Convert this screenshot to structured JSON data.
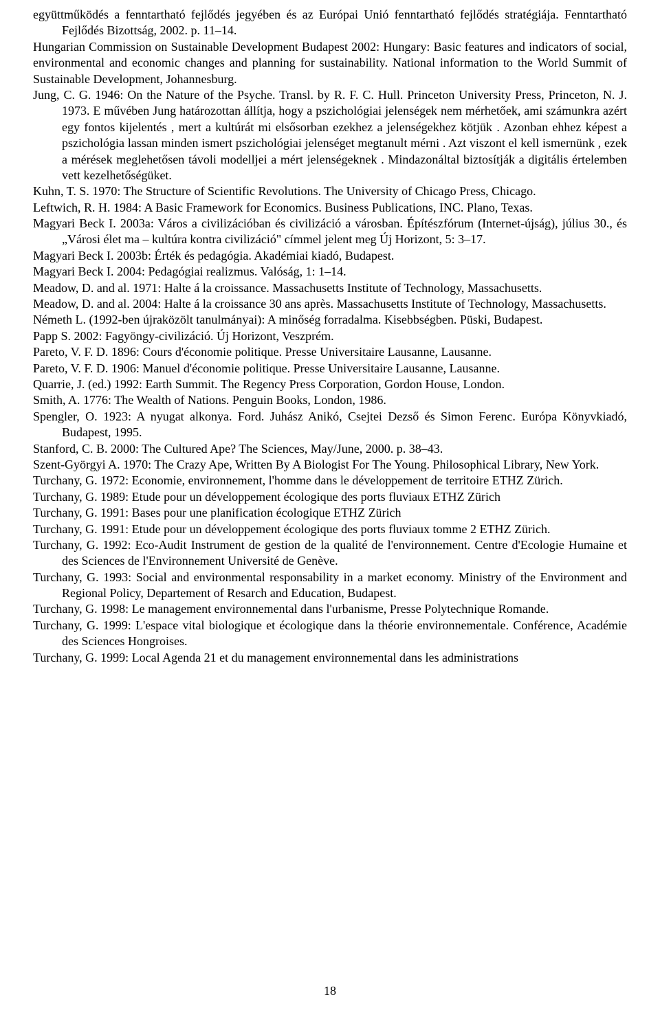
{
  "page_number": "18",
  "entries": [
    {
      "indent": true,
      "justify": true,
      "text": "együttműködés a fenntartható fejlődés jegyében és az Európai Unió fenntartható fejlődés stratégiája. Fenntartható Fejlődés Bizottság, 2002. p. 11–14."
    },
    {
      "indent": false,
      "justify": true,
      "text": "Hungarian Commission on Sustainable Development Budapest 2002: Hungary: Basic features and indicators of social, environmental and economic changes and planning for sustainability. National information to the World Summit of Sustainable Development, Johannesburg."
    },
    {
      "indent": true,
      "justify": true,
      "text": "Jung, C. G. 1946: On the Nature of the Psyche. Transl. by R. F. C. Hull. Princeton University Press, Princeton, N. J. 1973. E művében Jung határozottan állítja, hogy a pszichológiai jelenségek nem mérhetőek, ami számunkra azért egy fontos kijelentés , mert a kultúrát mi elsősorban ezekhez a jelenségekhez kötjük . Azonban ehhez képest a pszichológia lassan minden ismert pszichológiai jelenséget megtanult mérni . Azt viszont el kell ismernünk , ezek a mérések meglehetősen távoli modelljei a mért jelenségeknek . Mindazonáltal biztosítják a digitális értelemben vett kezelhetőségüket."
    },
    {
      "indent": true,
      "justify": true,
      "text": "Kuhn, T. S. 1970: The Structure of Scientific Revolutions. The University of Chicago Press, Chicago."
    },
    {
      "indent": true,
      "justify": true,
      "text": "Leftwich, R. H. 1984: A Basic Framework for Economics. Business Publications, INC. Plano, Texas."
    },
    {
      "indent": true,
      "justify": true,
      "text": "Magyari Beck I. 2003a: Város a civilizációban és civilizáció a városban. Építészfórum (Internet-újság), július 30., és „Városi élet ma – kultúra kontra civilizáció\" címmel jelent meg Új Horizont, 5: 3–17."
    },
    {
      "indent": false,
      "justify": false,
      "text": "Magyari Beck I. 2003b: Érték és pedagógia. Akadémiai kiadó, Budapest."
    },
    {
      "indent": false,
      "justify": false,
      "text": "Magyari Beck I. 2004: Pedagógiai realizmus. Valóság, 1: 1–14."
    },
    {
      "indent": true,
      "justify": true,
      "text": "Meadow, D. and al. 1971: Halte á la croissance. Massachusetts Institute of Technology, Massachusetts."
    },
    {
      "indent": true,
      "justify": true,
      "text": "Meadow, D. and al. 2004: Halte á la croissance 30 ans après. Massachusetts Institute of Technology, Massachusetts."
    },
    {
      "indent": true,
      "justify": true,
      "text": "Németh L. (1992-ben újraközölt tanulmányai): A minőség forradalma. Kisebbségben. Püski, Budapest."
    },
    {
      "indent": false,
      "justify": false,
      "text": "Papp S. 2002: Fagyöngy-civilizáció. Új Horizont, Veszprém."
    },
    {
      "indent": false,
      "justify": false,
      "text": "Pareto, V. F. D. 1896: Cours d'économie politique. Presse Universitaire Lausanne, Lausanne."
    },
    {
      "indent": false,
      "justify": false,
      "text": "Pareto, V. F. D. 1906: Manuel d'économie politique. Presse Universitaire Lausanne, Lausanne."
    },
    {
      "indent": false,
      "justify": false,
      "text": "Quarrie, J. (ed.) 1992: Earth Summit. The Regency Press Corporation, Gordon House, London."
    },
    {
      "indent": false,
      "justify": false,
      "text": "Smith, A. 1776: The Wealth of Nations. Penguin Books, London, 1986."
    },
    {
      "indent": true,
      "justify": true,
      "text": "Spengler, O. 1923: A nyugat alkonya. Ford. Juhász Anikó, Csejtei Dezső és Simon Ferenc. Európa Könyvkiadó, Budapest, 1995."
    },
    {
      "indent": false,
      "justify": false,
      "text": "Stanford, C. B. 2000: The Cultured Ape? The Sciences, May/June, 2000. p. 38–43."
    },
    {
      "indent": true,
      "justify": true,
      "text": "Szent-Györgyi A. 1970: The Crazy Ape, Written By A Biologist For The Young. Philosophical Library, New York."
    },
    {
      "indent": true,
      "justify": true,
      "text": "Turchany, G. 1972: Economie, environnement, l'homme dans le développement de territoire ETHZ Zürich."
    },
    {
      "indent": false,
      "justify": false,
      "text": "Turchany, G. 1989: Etude pour un développement écologique des ports fluviaux ETHZ Zürich"
    },
    {
      "indent": false,
      "justify": false,
      "text": "Turchany, G. 1991: Bases pour une planification écologique ETHZ Zürich"
    },
    {
      "indent": true,
      "justify": true,
      "text": "Turchany, G. 1991: Etude pour un développement écologique des ports fluviaux tomme 2 ETHZ Zürich."
    },
    {
      "indent": true,
      "justify": true,
      "text": "Turchany, G. 1992: Eco-Audit Instrument de gestion de la qualité de l'environnement. Centre d'Ecologie Humaine et des Sciences de l'Environnement Université de Genève."
    },
    {
      "indent": true,
      "justify": true,
      "text": "Turchany, G. 1993: Social and environmental responsability in a market economy. Ministry of the Environment and Regional Policy, Departement of Resarch and Education, Budapest."
    },
    {
      "indent": true,
      "justify": true,
      "text": "Turchany, G. 1998: Le management environnemental dans l'urbanisme, Presse Polytechnique Romande."
    },
    {
      "indent": true,
      "justify": true,
      "text": "Turchany, G. 1999: L'espace vital biologique et écologique dans la théorie environnementale. Conférence, Académie des Sciences Hongroises."
    },
    {
      "indent": false,
      "justify": false,
      "text": "Turchany, G. 1999: Local Agenda 21 et du management environnemental dans les administrations"
    }
  ]
}
